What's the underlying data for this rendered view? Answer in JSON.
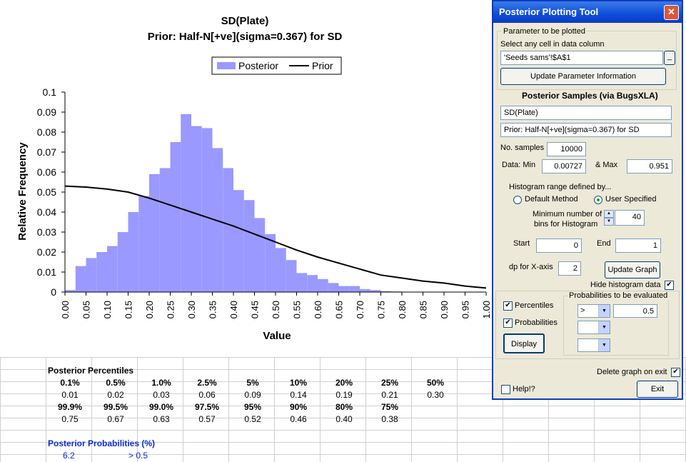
{
  "chart_data": {
    "type": "bar",
    "title": "SD(Plate)",
    "subtitle": "Prior: Half-N[+ve](sigma=0.367) for SD",
    "xlabel": "Value",
    "ylabel": "Relative Frequency",
    "xlim": [
      0,
      1
    ],
    "ylim": [
      0,
      0.1
    ],
    "yticks": [
      "0",
      "0.01",
      "0.02",
      "0.03",
      "0.04",
      "0.05",
      "0.06",
      "0.07",
      "0.08",
      "0.09",
      "0.1"
    ],
    "xticks": [
      "0.00",
      "0.05",
      "0.10",
      "0.15",
      "0.20",
      "0.25",
      "0.30",
      "0.35",
      "0.40",
      "0.45",
      "0.50",
      "0.55",
      "0.60",
      "0.65",
      "0.70",
      "0.75",
      "0.80",
      "0.85",
      "0.90",
      "0.95",
      "1.00"
    ],
    "legend": {
      "position": "top-center",
      "entries": [
        "Posterior",
        "Prior"
      ]
    },
    "series": [
      {
        "name": "Posterior",
        "type": "bar",
        "color": "#9999ff",
        "bin_width": 0.025,
        "x": [
          0.0,
          0.025,
          0.05,
          0.075,
          0.1,
          0.125,
          0.15,
          0.175,
          0.2,
          0.225,
          0.25,
          0.275,
          0.3,
          0.325,
          0.35,
          0.375,
          0.4,
          0.425,
          0.45,
          0.475,
          0.5,
          0.525,
          0.55,
          0.575,
          0.6,
          0.625,
          0.65,
          0.675,
          0.7,
          0.725,
          0.75,
          0.775
        ],
        "values": [
          0.001,
          0.013,
          0.017,
          0.02,
          0.023,
          0.03,
          0.04,
          0.048,
          0.059,
          0.062,
          0.075,
          0.089,
          0.083,
          0.082,
          0.072,
          0.062,
          0.051,
          0.046,
          0.037,
          0.029,
          0.022,
          0.016,
          0.0095,
          0.0085,
          0.0065,
          0.0045,
          0.003,
          0.003,
          0.0015,
          0.001,
          0.0005,
          0.0003
        ]
      },
      {
        "name": "Prior",
        "type": "line",
        "color": "#000000",
        "x": [
          0.0,
          0.05,
          0.1,
          0.15,
          0.2,
          0.25,
          0.3,
          0.35,
          0.4,
          0.45,
          0.5,
          0.55,
          0.6,
          0.65,
          0.7,
          0.75,
          0.8,
          0.85,
          0.9,
          0.95,
          1.0
        ],
        "values": [
          0.053,
          0.0525,
          0.0515,
          0.05,
          0.047,
          0.0435,
          0.04,
          0.0365,
          0.033,
          0.029,
          0.025,
          0.021,
          0.0175,
          0.0145,
          0.0115,
          0.0085,
          0.007,
          0.0055,
          0.0045,
          0.003,
          0.002
        ]
      }
    ]
  },
  "sheet": {
    "percentiles_title": "Posterior Percentiles",
    "row1_headers": [
      "0.1%",
      "0.5%",
      "1.0%",
      "2.5%",
      "5%",
      "10%",
      "20%",
      "25%",
      "50%"
    ],
    "row1_values": [
      "0.01",
      "0.02",
      "0.03",
      "0.06",
      "0.09",
      "0.14",
      "0.19",
      "0.21",
      "0.30"
    ],
    "row2_headers": [
      "99.9%",
      "99.5%",
      "99.0%",
      "97.5%",
      "95%",
      "90%",
      "80%",
      "75%"
    ],
    "row2_values": [
      "0.75",
      "0.67",
      "0.63",
      "0.57",
      "0.52",
      "0.46",
      "0.40",
      "0.38"
    ],
    "probabilities_title": "Posterior Probabilities (%)",
    "prob_value": "6.2",
    "prob_condition": "> 0.5"
  },
  "dialog": {
    "title": "Posterior Plotting Tool",
    "close_glyph": "✕",
    "param_frame_label": "Parameter to be plotted",
    "select_cell_label": "Select any cell in data column",
    "cell_ref": "'Seeds sams'!$A$1",
    "cell_ref_btn": "_",
    "update_param_btn": "Update Parameter Information",
    "samples_heading": "Posterior Samples (via BugsXLA)",
    "param_name": "SD(Plate)",
    "prior_text": "Prior: Half-N[+ve](sigma=0.367) for SD",
    "no_samples_label": "No. samples",
    "no_samples": "10000",
    "data_min_label": "Data: Min",
    "data_min": "0.00727",
    "max_label": "& Max",
    "data_max": "0.951",
    "hist_range_label": "Histogram range defined by...",
    "default_method_label": "Default Method",
    "user_specified_label": "User Specified",
    "min_bins_label_1": "Minimum number of",
    "min_bins_label_2": "bins for Histogram",
    "min_bins": "40",
    "start_label": "Start",
    "start": "0",
    "end_label": "End",
    "end": "1",
    "dp_label": "dp for X-axis",
    "dp": "2",
    "update_graph_btn": "Update Graph",
    "hide_hist_label": "Hide histogram data",
    "percentiles_label": "Percentiles",
    "probabilities_label": "Probabilities",
    "display_btn": "Display",
    "prob_frame_label": "Probabilities to be evaluated",
    "prob_op": ">",
    "prob_value": "0.5",
    "delete_graph_label": "Delete graph on exit",
    "help_label": "Help!?",
    "exit_btn": "Exit",
    "check_glyph": "✔",
    "arrow_glyph": "▼",
    "up_glyph": "▲"
  }
}
